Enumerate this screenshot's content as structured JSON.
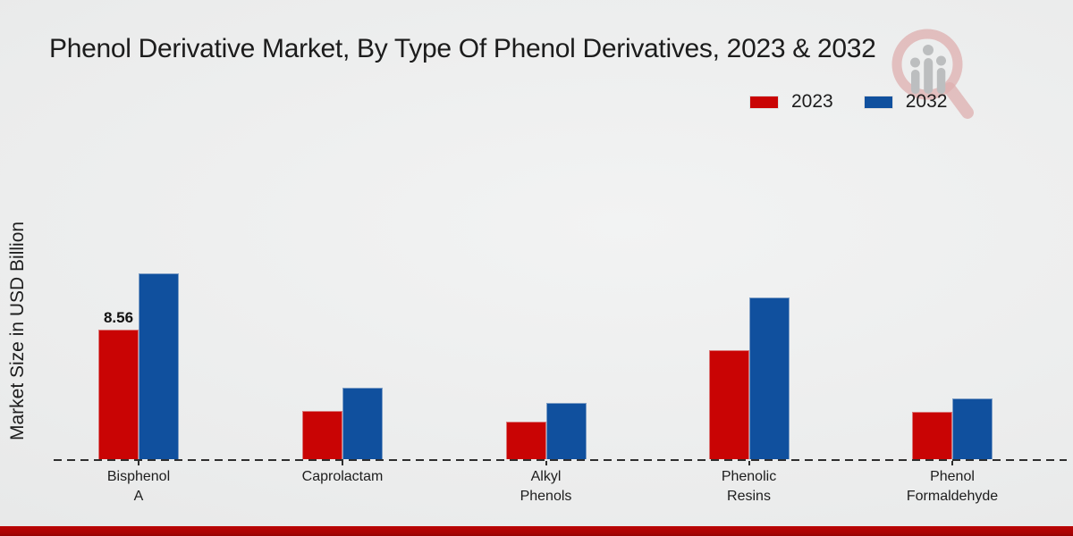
{
  "header": {
    "title": "Phenol Derivative Market, By Type Of Phenol Derivatives, 2023 & 2032"
  },
  "y_axis": {
    "label": "Market Size in USD Billion"
  },
  "legend": {
    "position": "top-right",
    "items": [
      {
        "label": "2023",
        "color": "#c90404"
      },
      {
        "label": "2032",
        "color": "#10509e"
      }
    ]
  },
  "watermark": {
    "icon": "magnifier-bar-chart-logo",
    "glass_color": "#c54a4a",
    "bars_color": "#8f9194"
  },
  "footer": {
    "band_color": "#b20404"
  },
  "chart_data": {
    "type": "bar",
    "title": "Phenol Derivative Market, By Type Of Phenol Derivatives, 2023 & 2032",
    "xlabel": "",
    "ylabel": "Market Size in USD Billion",
    "categories": [
      "Bisphenol A",
      "Caprolactam",
      "Alkyl Phenols",
      "Phenolic Resins",
      "Phenol Formaldehyde"
    ],
    "series": [
      {
        "name": "2023",
        "color": "#c90404",
        "values": [
          8.56,
          3.2,
          2.5,
          7.2,
          3.1
        ]
      },
      {
        "name": "2032",
        "color": "#10509e",
        "values": [
          12.3,
          4.7,
          3.7,
          10.7,
          4.0
        ]
      }
    ],
    "value_labels": [
      {
        "series_index": 0,
        "category_index": 0,
        "text": "8.56"
      }
    ],
    "ylim": [
      0,
      13
    ],
    "grid": false,
    "axis_style": "dashed-baseline",
    "legend_position": "top-right"
  }
}
